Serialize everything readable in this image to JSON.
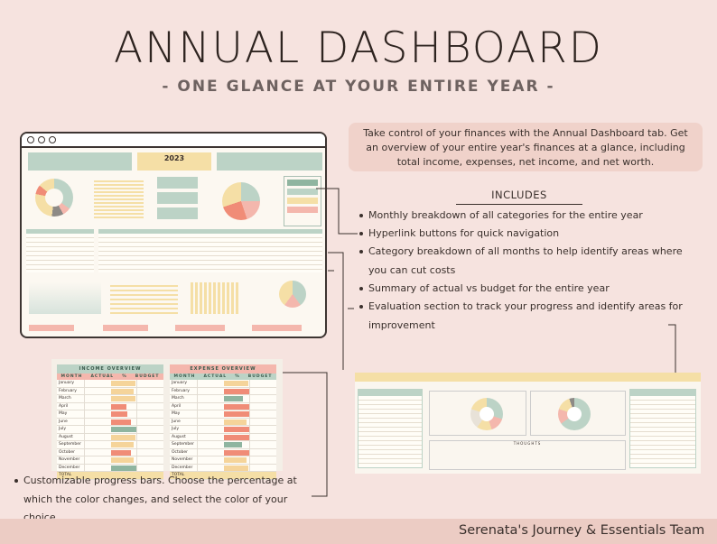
{
  "header": {
    "title": "ANNUAL DASHBOARD",
    "subtitle": "- ONE GLANCE AT YOUR ENTIRE YEAR -"
  },
  "description": "Take control of your finances with the Annual Dashboard tab. Get an overview of your entire year's finances at a glance, including total income, expenses, net income, and net worth.",
  "includes": {
    "heading": "INCLUDES",
    "items": [
      "Monthly breakdown of all categories for the entire year",
      "Hyperlink buttons for quick navigation",
      "Category breakdown of all months to help identify areas where you can cut costs",
      "Summary of actual vs budget for the entire year",
      "Evaluation section to track your progress and identify areas for improvement"
    ]
  },
  "progress_note": "Customizable progress bars. Choose the percentage at which the color changes, and select the color of your choice",
  "dashboard": {
    "year": "2023"
  },
  "income_overview": {
    "title": "INCOME OVERVIEW",
    "columns": [
      "MONTH",
      "ACTUAL",
      "%",
      "BUDGET"
    ],
    "total_label": "TOTAL",
    "months": [
      "January",
      "February",
      "March",
      "April",
      "May",
      "June",
      "July",
      "August",
      "September",
      "October",
      "November",
      "December"
    ],
    "progress": [
      0.95,
      0.9,
      0.98,
      0.6,
      0.65,
      0.8,
      1.0,
      0.95,
      0.9,
      0.8,
      0.9,
      1.0
    ],
    "colors": [
      "#f5d49a",
      "#f5d49a",
      "#f5d49a",
      "#f08c77",
      "#f08c77",
      "#f08c77",
      "#8fb5a0",
      "#f5d49a",
      "#f5d49a",
      "#f08c77",
      "#f5d49a",
      "#8fb5a0"
    ]
  },
  "expense_overview": {
    "title": "EXPENSE OVERVIEW",
    "columns": [
      "MONTH",
      "ACTUAL",
      "%",
      "BUDGET"
    ],
    "total_label": "TOTAL",
    "months": [
      "January",
      "February",
      "March",
      "April",
      "May",
      "June",
      "July",
      "August",
      "September",
      "October",
      "November",
      "December"
    ],
    "progress": [
      0.95,
      1.0,
      0.75,
      1.0,
      1.0,
      0.9,
      1.0,
      1.0,
      0.7,
      1.0,
      0.9,
      0.95
    ],
    "colors": [
      "#f5d49a",
      "#f08c77",
      "#8fb5a0",
      "#f08c77",
      "#f08c77",
      "#f5d49a",
      "#f08c77",
      "#f08c77",
      "#8fb5a0",
      "#f08c77",
      "#f5d49a",
      "#f5d49a"
    ]
  },
  "evaluation": {
    "thoughts_label": "THOUGHTS"
  },
  "footer": {
    "text": "Serenata's Journey & Essentials Team"
  }
}
